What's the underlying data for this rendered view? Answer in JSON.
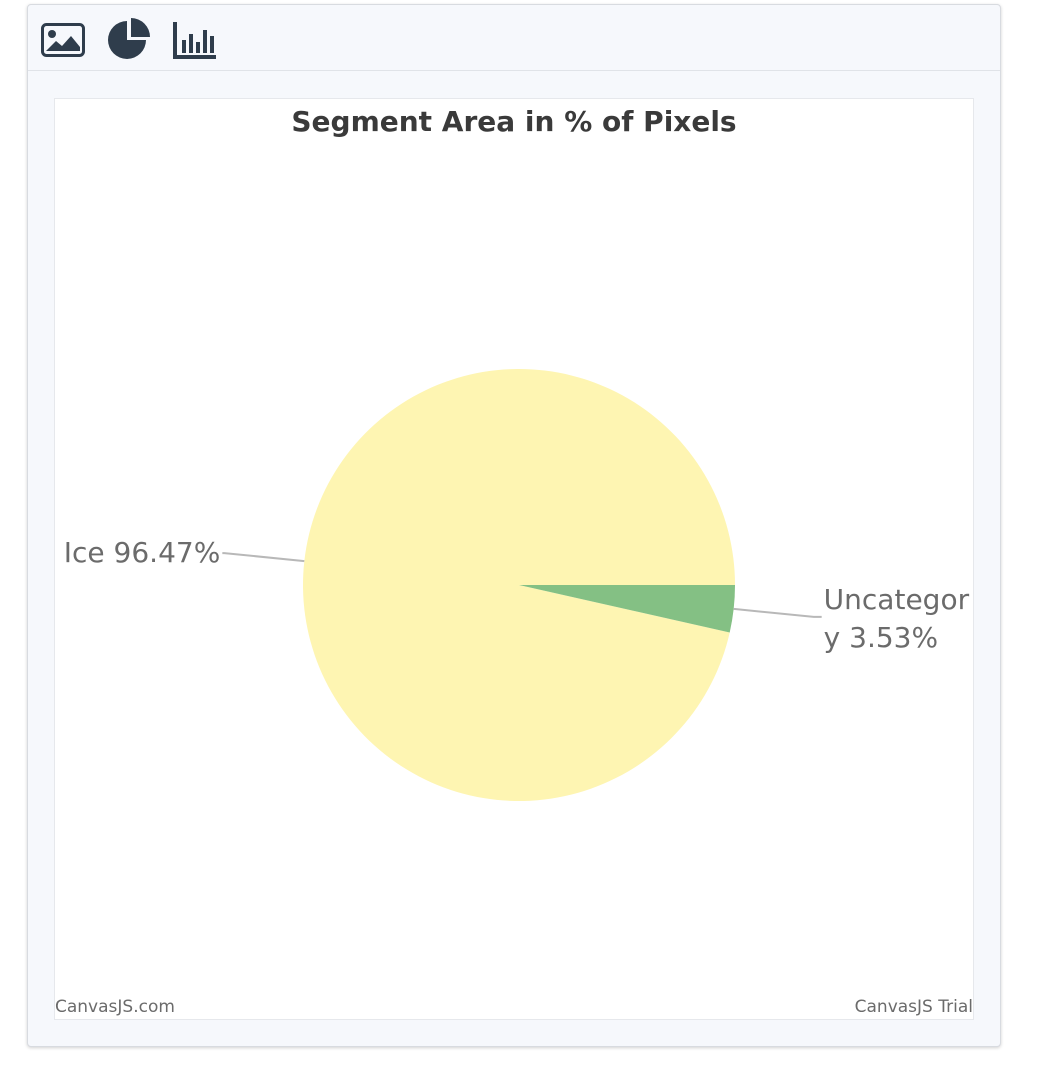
{
  "toolbar": {
    "items": [
      {
        "name": "image-view",
        "icon": "image-icon"
      },
      {
        "name": "pie-chart-view",
        "icon": "pie-chart-icon"
      },
      {
        "name": "bar-chart-view",
        "icon": "bar-chart-icon"
      }
    ],
    "icon_color": "#2f3d4c"
  },
  "chart_data": {
    "type": "pie",
    "title": "Segment Area in % of Pixels",
    "slices": [
      {
        "label": "Ice",
        "value": 96.47,
        "display": "Ice 96.47%",
        "color": "#fef5b2"
      },
      {
        "label": "Uncategory",
        "value": 3.53,
        "display_lines": [
          "Uncategor",
          "y 3.53%"
        ],
        "color": "#84c084"
      }
    ],
    "start_angle_deg": 0,
    "direction": "counterclockwise-from-right (ice first, clockwise from 3 o'clock leaves uncategory just below 3 o'clock)"
  },
  "credits": {
    "left": "CanvasJS.com",
    "right": "CanvasJS Trial"
  }
}
